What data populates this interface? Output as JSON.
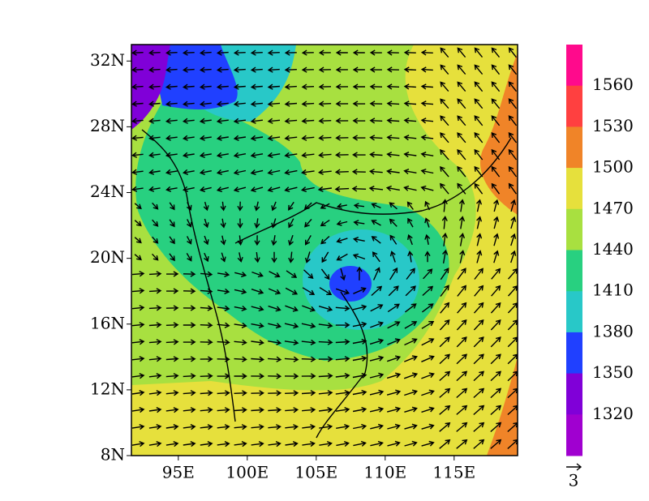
{
  "map": {
    "lonlim": [
      91.6,
      119.6
    ],
    "latlim": [
      8,
      33
    ],
    "lon_ticks": [
      {
        "value": 95,
        "label": "95E"
      },
      {
        "value": 100,
        "label": "100E"
      },
      {
        "value": 105,
        "label": "105E"
      },
      {
        "value": 110,
        "label": "110E"
      },
      {
        "value": 115,
        "label": "115E"
      }
    ],
    "lat_ticks": [
      {
        "value": 32,
        "label": "32N"
      },
      {
        "value": 28,
        "label": "28N"
      },
      {
        "value": 24,
        "label": "24N"
      },
      {
        "value": 20,
        "label": "20N"
      },
      {
        "value": 16,
        "label": "16N"
      },
      {
        "value": 12,
        "label": "12N"
      },
      {
        "value": 8,
        "label": "8N"
      }
    ],
    "colorbar": {
      "levels": [
        1560,
        1530,
        1500,
        1470,
        1440,
        1410,
        1380,
        1350,
        1320
      ],
      "colors": [
        "#ff0a8c",
        "#ff4040",
        "#f08428",
        "#e6e03c",
        "#a8e040",
        "#28d080",
        "#28c8c8",
        "#2040ff",
        "#8000d8",
        "#a000d0"
      ]
    },
    "vector_reference": "3"
  }
}
